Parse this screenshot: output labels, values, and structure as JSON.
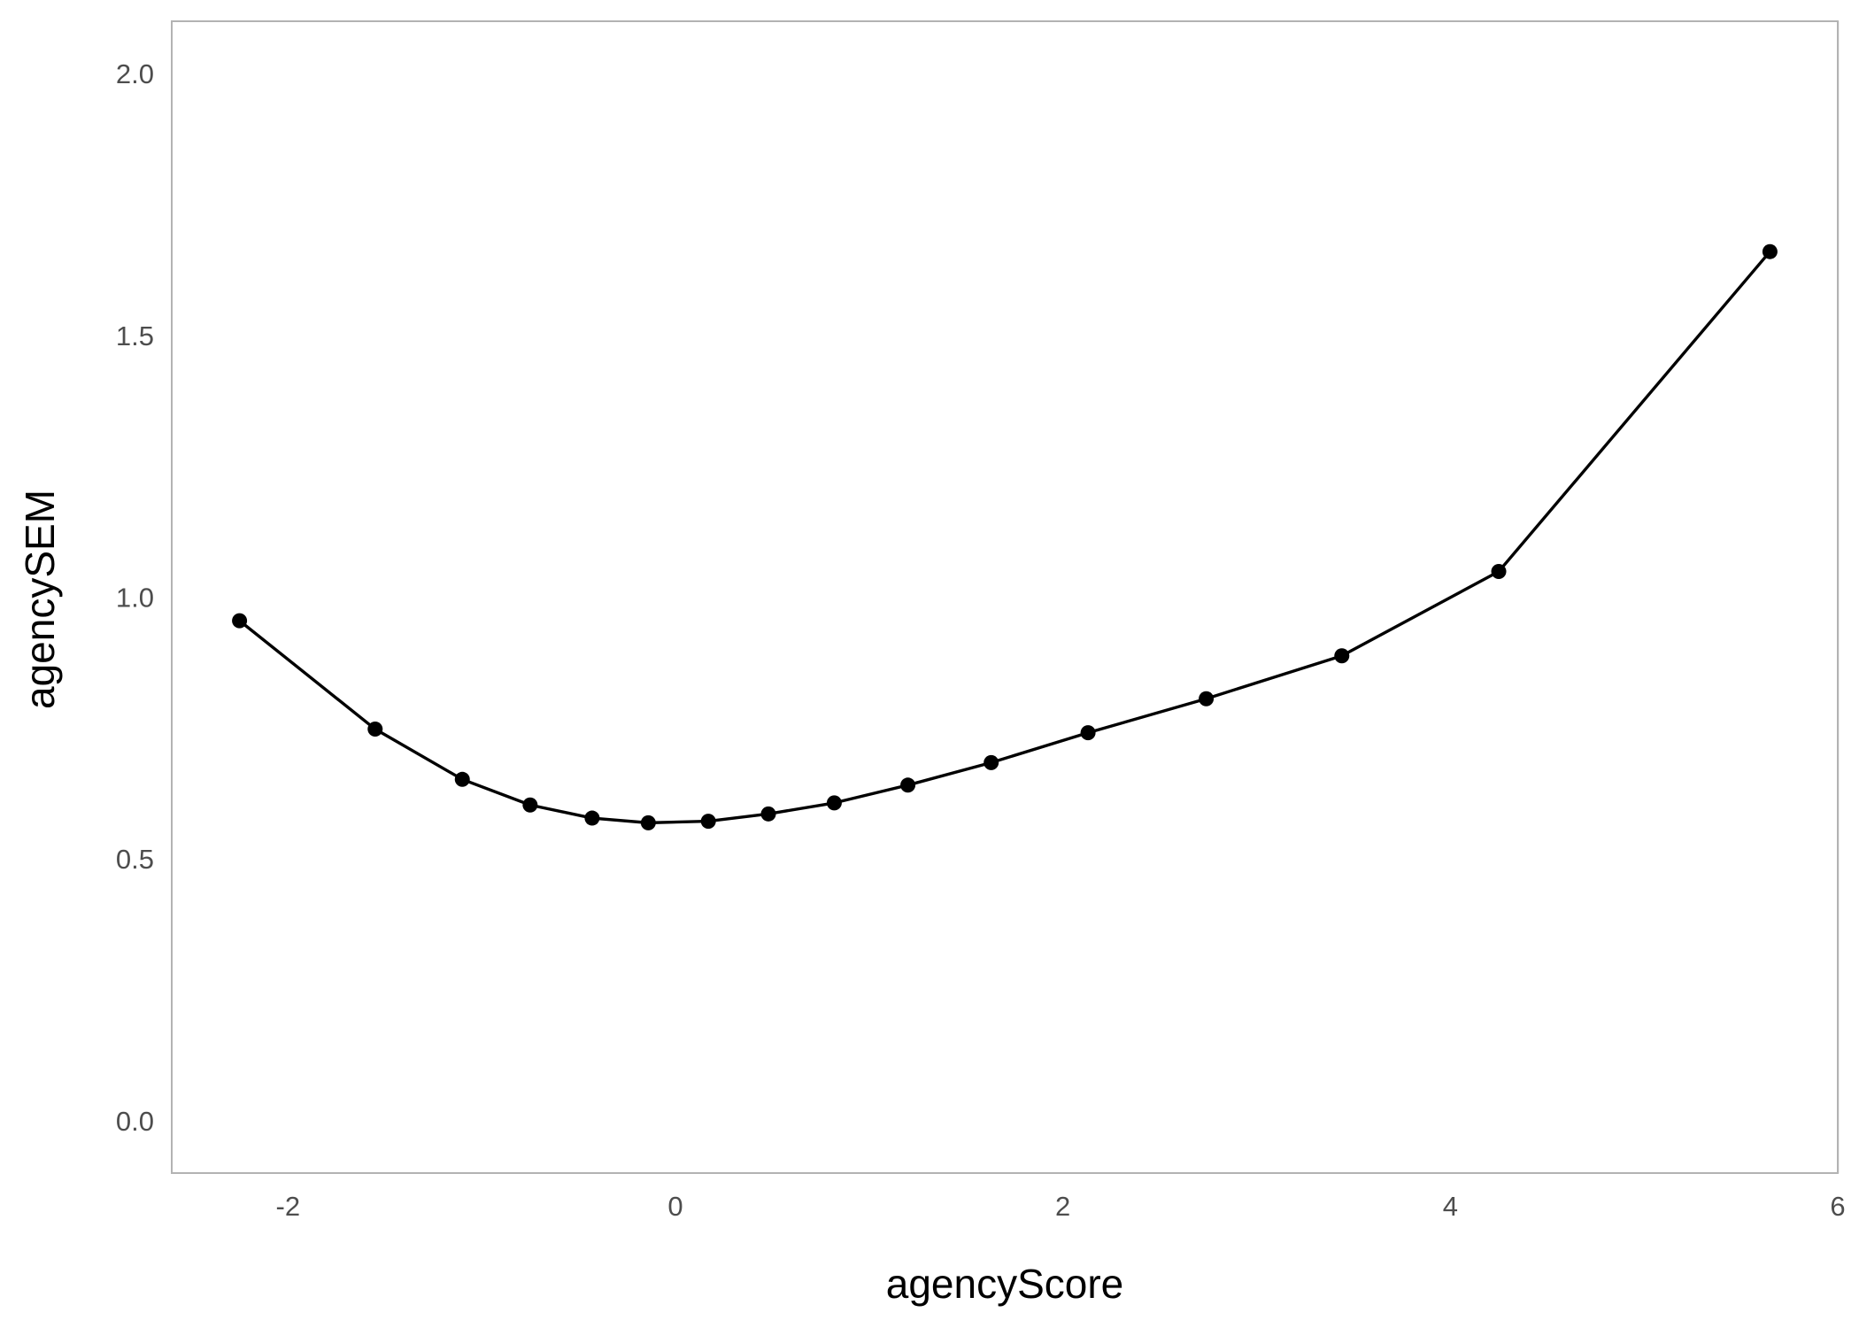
{
  "chart_data": {
    "type": "line",
    "title": "",
    "xlabel": "agencyScore",
    "ylabel": "agencySEM",
    "xlim": [
      -2.6,
      6
    ],
    "ylim": [
      -0.1,
      2.1
    ],
    "x_ticks": [
      -2,
      0,
      2,
      4,
      6
    ],
    "x_tick_labels": [
      "-2",
      "0",
      "2",
      "4",
      "6"
    ],
    "y_ticks": [
      0.0,
      0.5,
      1.0,
      1.5,
      2.0
    ],
    "y_tick_labels": [
      "0.0",
      "0.5",
      "1.0",
      "1.5",
      "2.0"
    ],
    "x_minor": [
      -1,
      1,
      3,
      5
    ],
    "y_minor": [
      0.25,
      0.75,
      1.25,
      1.75
    ],
    "grid": true,
    "series": [
      {
        "x": [
          -2.25,
          -1.55,
          -1.1,
          -0.75,
          -0.43,
          -0.14,
          0.17,
          0.48,
          0.82,
          1.2,
          1.63,
          2.13,
          2.74,
          3.44,
          4.25,
          5.65
        ],
        "y": [
          0.955,
          0.748,
          0.652,
          0.603,
          0.578,
          0.569,
          0.572,
          0.586,
          0.607,
          0.641,
          0.684,
          0.741,
          0.806,
          0.888,
          1.049,
          1.66
        ]
      }
    ],
    "colors": {
      "line": "#000000",
      "grid": "#e6e6e6",
      "border": "#b3b3b3",
      "tick_text": "#4d4d4d"
    }
  }
}
